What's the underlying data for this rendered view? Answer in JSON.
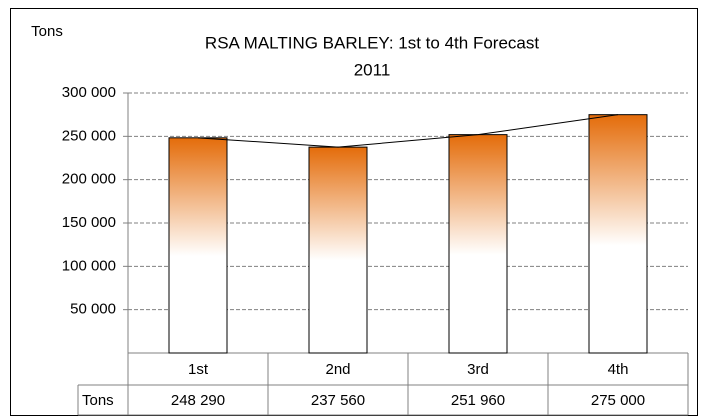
{
  "chart_data": {
    "type": "bar",
    "title": "RSA MALTING BARLEY: 1st to 4th Forecast",
    "subtitle": "2011",
    "y_label": "Tons",
    "categories": [
      "1st",
      "2nd",
      "3rd",
      "4th"
    ],
    "series": [
      {
        "name": "Tons",
        "color": "#e46c0a",
        "values": [
          248290,
          237560,
          251960,
          275000
        ],
        "value_labels": [
          "248 290",
          "237 560",
          "251 960",
          "275 000"
        ]
      }
    ],
    "ylim": [
      0,
      300000
    ],
    "yticks": [
      {
        "value": 50000,
        "label": "50 000"
      },
      {
        "value": 100000,
        "label": "100 000"
      },
      {
        "value": 150000,
        "label": "150 000"
      },
      {
        "value": 200000,
        "label": "200 000"
      },
      {
        "value": 250000,
        "label": "250 000"
      },
      {
        "value": 300000,
        "label": "300 000"
      }
    ],
    "grid": true
  }
}
